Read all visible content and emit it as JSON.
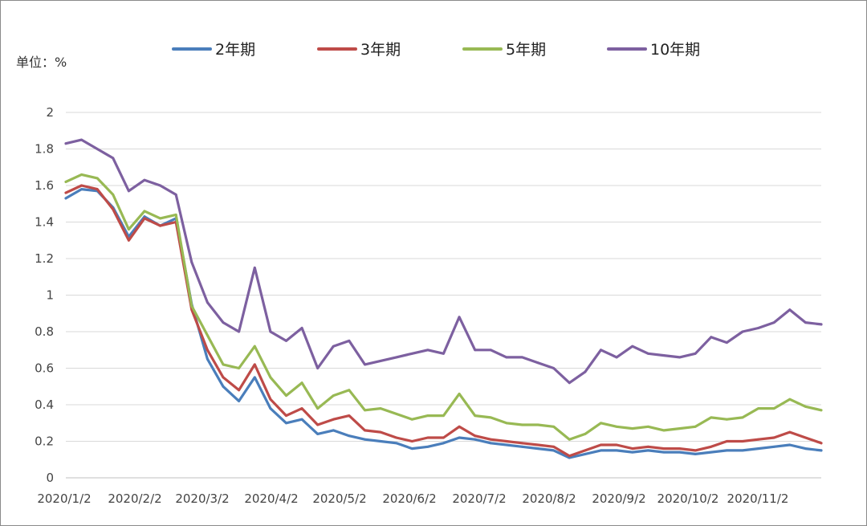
{
  "chart_data": {
    "type": "line",
    "unit_label": "单位：%",
    "ylim": [
      0,
      2
    ],
    "y_ticks": [
      "0",
      "0.2",
      "0.4",
      "0.6",
      "0.8",
      "1",
      "1.2",
      "1.4",
      "1.6",
      "1.8",
      "2"
    ],
    "x_tick_labels": [
      "2020/1/2",
      "2020/2/2",
      "2020/3/2",
      "2020/4/2",
      "2020/5/2",
      "2020/6/2",
      "2020/7/2",
      "2020/8/2",
      "2020/9/2",
      "2020/10/2",
      "2020/11/2"
    ],
    "grid": true,
    "legend_position": "top",
    "x": [
      "2020/1/2",
      "2020/1/9",
      "2020/1/16",
      "2020/1/23",
      "2020/2/2",
      "2020/2/9",
      "2020/2/16",
      "2020/2/23",
      "2020/3/2",
      "2020/3/6",
      "2020/3/9",
      "2020/3/13",
      "2020/3/16",
      "2020/3/20",
      "2020/3/23",
      "2020/3/27",
      "2020/4/2",
      "2020/4/9",
      "2020/4/16",
      "2020/4/23",
      "2020/5/2",
      "2020/5/9",
      "2020/5/16",
      "2020/5/23",
      "2020/6/2",
      "2020/6/9",
      "2020/6/16",
      "2020/6/23",
      "2020/7/2",
      "2020/7/9",
      "2020/7/16",
      "2020/7/23",
      "2020/8/2",
      "2020/8/9",
      "2020/8/16",
      "2020/8/23",
      "2020/9/2",
      "2020/9/9",
      "2020/9/16",
      "2020/9/23",
      "2020/10/2",
      "2020/10/9",
      "2020/10/16",
      "2020/10/23",
      "2020/11/2",
      "2020/11/9",
      "2020/11/16",
      "2020/11/23",
      "2020/11/30"
    ],
    "series": [
      {
        "name": "2年期",
        "color": "#4a7ebb",
        "values": [
          1.53,
          1.58,
          1.57,
          1.48,
          1.32,
          1.43,
          1.38,
          1.42,
          0.95,
          0.65,
          0.5,
          0.42,
          0.55,
          0.38,
          0.3,
          0.32,
          0.24,
          0.26,
          0.23,
          0.21,
          0.2,
          0.19,
          0.16,
          0.17,
          0.19,
          0.22,
          0.21,
          0.19,
          0.18,
          0.17,
          0.16,
          0.15,
          0.11,
          0.13,
          0.15,
          0.15,
          0.14,
          0.15,
          0.14,
          0.14,
          0.13,
          0.14,
          0.15,
          0.15,
          0.16,
          0.17,
          0.18,
          0.16,
          0.15
        ]
      },
      {
        "name": "3年期",
        "color": "#be4b48",
        "values": [
          1.56,
          1.6,
          1.58,
          1.47,
          1.3,
          1.42,
          1.38,
          1.4,
          0.92,
          0.7,
          0.55,
          0.48,
          0.62,
          0.43,
          0.34,
          0.38,
          0.29,
          0.32,
          0.34,
          0.26,
          0.25,
          0.22,
          0.2,
          0.22,
          0.22,
          0.28,
          0.23,
          0.21,
          0.2,
          0.19,
          0.18,
          0.17,
          0.12,
          0.15,
          0.18,
          0.18,
          0.16,
          0.17,
          0.16,
          0.16,
          0.15,
          0.17,
          0.2,
          0.2,
          0.21,
          0.22,
          0.25,
          0.22,
          0.19
        ]
      },
      {
        "name": "5年期",
        "color": "#98b954",
        "values": [
          1.62,
          1.66,
          1.64,
          1.55,
          1.36,
          1.46,
          1.42,
          1.44,
          0.94,
          0.78,
          0.62,
          0.6,
          0.72,
          0.55,
          0.45,
          0.52,
          0.38,
          0.45,
          0.48,
          0.37,
          0.38,
          0.35,
          0.32,
          0.34,
          0.34,
          0.46,
          0.34,
          0.33,
          0.3,
          0.29,
          0.29,
          0.28,
          0.21,
          0.24,
          0.3,
          0.28,
          0.27,
          0.28,
          0.26,
          0.27,
          0.28,
          0.33,
          0.32,
          0.33,
          0.38,
          0.38,
          0.43,
          0.39,
          0.37
        ]
      },
      {
        "name": "10年期",
        "color": "#7d60a0",
        "values": [
          1.83,
          1.85,
          1.8,
          1.75,
          1.57,
          1.63,
          1.6,
          1.55,
          1.18,
          0.96,
          0.85,
          0.8,
          1.15,
          0.8,
          0.75,
          0.82,
          0.6,
          0.72,
          0.75,
          0.62,
          0.64,
          0.66,
          0.68,
          0.7,
          0.68,
          0.88,
          0.7,
          0.7,
          0.66,
          0.66,
          0.63,
          0.6,
          0.52,
          0.58,
          0.7,
          0.66,
          0.72,
          0.68,
          0.67,
          0.66,
          0.68,
          0.77,
          0.74,
          0.8,
          0.82,
          0.85,
          0.92,
          0.85,
          0.84
        ]
      }
    ]
  }
}
